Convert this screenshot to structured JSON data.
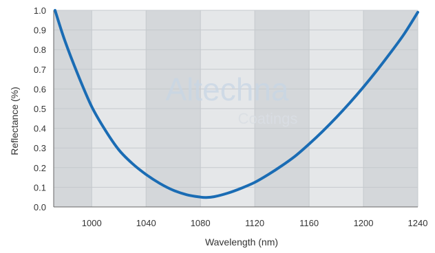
{
  "watermark": {
    "brand": "Altechna",
    "sub": "Coatings"
  },
  "chart_data": {
    "type": "line",
    "xlabel": "Wavelength (nm)",
    "ylabel": "Reflectance (%)",
    "xlim": [
      972,
      1240
    ],
    "ylim": [
      0,
      1.0
    ],
    "x_ticks": [
      1000,
      1040,
      1080,
      1120,
      1160,
      1200,
      1240
    ],
    "x_tick_labels": [
      "1000",
      "1040",
      "1080",
      "1120",
      "1160",
      "1200",
      "1240"
    ],
    "y_ticks": [
      0,
      0.1,
      0.2,
      0.3,
      0.4,
      0.5,
      0.6,
      0.7,
      0.8,
      0.9,
      1.0
    ],
    "y_tick_labels": [
      "0.0",
      "0.1",
      "0.2",
      "0.3",
      "0.4",
      "0.5",
      "0.6",
      "0.7",
      "0.8",
      "0.9",
      "1.0"
    ],
    "background_bands": true,
    "grid": true,
    "colors": {
      "line": "#1a6cb4",
      "band_dark": "#d4d7da",
      "band_light": "#e5e7e9",
      "grid": "#c5c9cd",
      "axis": "#666666"
    },
    "series": [
      {
        "x": [
          973,
          980,
          990,
          1000,
          1010,
          1020,
          1030,
          1040,
          1050,
          1060,
          1070,
          1080,
          1084,
          1090,
          1100,
          1110,
          1120,
          1130,
          1140,
          1150,
          1160,
          1170,
          1180,
          1190,
          1200,
          1210,
          1220,
          1230,
          1240
        ],
        "y": [
          1.0,
          0.85,
          0.67,
          0.51,
          0.39,
          0.29,
          0.22,
          0.165,
          0.12,
          0.085,
          0.062,
          0.05,
          0.048,
          0.052,
          0.07,
          0.095,
          0.125,
          0.165,
          0.21,
          0.26,
          0.32,
          0.385,
          0.455,
          0.53,
          0.61,
          0.695,
          0.785,
          0.88,
          0.99
        ]
      }
    ]
  }
}
